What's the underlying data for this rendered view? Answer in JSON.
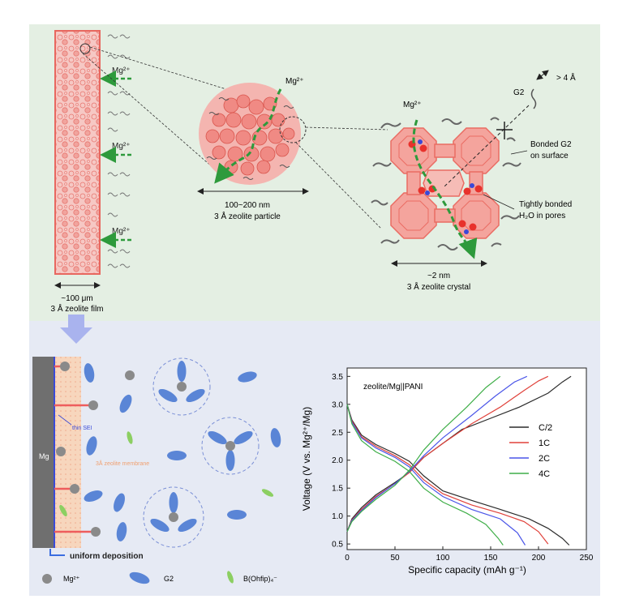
{
  "colors": {
    "zeolite_fill": "#f4b5b0",
    "zeolite_stroke": "#e8675f",
    "mg_path": "#2e9a3c",
    "g2": "#5a85d6",
    "mg_ion": "#8a8a8a",
    "anion": "#8ccf62",
    "sei": "#3a4bd8",
    "mg_metal": "#6f6f6f"
  },
  "top": {
    "film": {
      "mg_labels": [
        "Mg²⁺",
        "Mg²⁺",
        "Mg²⁺"
      ],
      "scale_label": "~100 μm",
      "caption": "3 Å zeolite film"
    },
    "particle": {
      "mg_label": "Mg²⁺",
      "scale_label": "100~200 nm",
      "caption": "3 Å zeolite particle"
    },
    "crystal": {
      "mg_label": "Mg²⁺",
      "g2_label": "G2",
      "size_label": "> 4 Å",
      "bonded_g2": [
        "Bonded G2",
        "on surface"
      ],
      "water": [
        "Tightly bonded",
        "H₂O in pores"
      ],
      "scale_label": "~2 nm",
      "caption": "3 Å zeolite crystal"
    }
  },
  "bottom": {
    "mg_label": "Mg",
    "sei_label": "thin SEI",
    "membrane_label": "3Å zeolite membrane",
    "deposition_label": "uniform deposition",
    "legend": [
      {
        "symbol": "mg-ion",
        "label": "Mg²⁺"
      },
      {
        "symbol": "g2",
        "label": "G2"
      },
      {
        "symbol": "anion",
        "label": "B(Ohfip)₄⁻"
      }
    ]
  },
  "chart_data": {
    "type": "line",
    "annotation": "zeolite/Mg||PANI",
    "xlabel": "Specific capacity (mAh g⁻¹)",
    "ylabel": "Voltage (V vs. Mg²⁺/Mg)",
    "xlim": [
      0,
      250
    ],
    "ylim": [
      0.4,
      3.65
    ],
    "xticks": [
      "0",
      "50",
      "100",
      "150",
      "200",
      "250"
    ],
    "yticks": [
      "0.5",
      "1.0",
      "1.5",
      "2.0",
      "2.5",
      "3.0",
      "3.5"
    ],
    "legend_position": "right",
    "series": [
      {
        "name": "C/2",
        "color": "#2b2b2b",
        "discharge": [
          [
            0,
            3.0
          ],
          [
            5,
            2.72
          ],
          [
            15,
            2.45
          ],
          [
            30,
            2.28
          ],
          [
            50,
            2.12
          ],
          [
            65,
            1.98
          ],
          [
            80,
            1.72
          ],
          [
            100,
            1.45
          ],
          [
            130,
            1.28
          ],
          [
            160,
            1.12
          ],
          [
            190,
            0.95
          ],
          [
            210,
            0.78
          ],
          [
            225,
            0.6
          ],
          [
            232,
            0.48
          ]
        ],
        "charge": [
          [
            0,
            0.72
          ],
          [
            5,
            0.95
          ],
          [
            15,
            1.15
          ],
          [
            30,
            1.38
          ],
          [
            50,
            1.6
          ],
          [
            65,
            1.78
          ],
          [
            80,
            2.05
          ],
          [
            100,
            2.3
          ],
          [
            120,
            2.55
          ],
          [
            150,
            2.75
          ],
          [
            180,
            2.95
          ],
          [
            210,
            3.2
          ],
          [
            225,
            3.4
          ],
          [
            234,
            3.5
          ]
        ]
      },
      {
        "name": "1C",
        "color": "#e0413a",
        "discharge": [
          [
            0,
            3.0
          ],
          [
            5,
            2.7
          ],
          [
            15,
            2.42
          ],
          [
            30,
            2.25
          ],
          [
            50,
            2.08
          ],
          [
            65,
            1.92
          ],
          [
            80,
            1.65
          ],
          [
            100,
            1.4
          ],
          [
            130,
            1.2
          ],
          [
            160,
            1.05
          ],
          [
            185,
            0.9
          ],
          [
            200,
            0.72
          ],
          [
            210,
            0.5
          ]
        ],
        "charge": [
          [
            0,
            0.72
          ],
          [
            5,
            0.93
          ],
          [
            15,
            1.12
          ],
          [
            30,
            1.35
          ],
          [
            50,
            1.58
          ],
          [
            65,
            1.78
          ],
          [
            80,
            2.05
          ],
          [
            100,
            2.3
          ],
          [
            130,
            2.65
          ],
          [
            160,
            2.95
          ],
          [
            185,
            3.25
          ],
          [
            200,
            3.42
          ],
          [
            210,
            3.5
          ]
        ]
      },
      {
        "name": "2C",
        "color": "#4a55e8",
        "discharge": [
          [
            0,
            3.0
          ],
          [
            5,
            2.68
          ],
          [
            15,
            2.4
          ],
          [
            30,
            2.22
          ],
          [
            50,
            2.05
          ],
          [
            65,
            1.88
          ],
          [
            80,
            1.6
          ],
          [
            100,
            1.35
          ],
          [
            130,
            1.12
          ],
          [
            160,
            0.95
          ],
          [
            178,
            0.7
          ],
          [
            186,
            0.48
          ]
        ],
        "charge": [
          [
            0,
            0.72
          ],
          [
            5,
            0.92
          ],
          [
            15,
            1.1
          ],
          [
            30,
            1.33
          ],
          [
            50,
            1.58
          ],
          [
            65,
            1.8
          ],
          [
            80,
            2.08
          ],
          [
            100,
            2.4
          ],
          [
            130,
            2.8
          ],
          [
            155,
            3.15
          ],
          [
            175,
            3.4
          ],
          [
            188,
            3.5
          ]
        ]
      },
      {
        "name": "4C",
        "color": "#3fae48",
        "discharge": [
          [
            0,
            3.0
          ],
          [
            5,
            2.65
          ],
          [
            15,
            2.35
          ],
          [
            30,
            2.15
          ],
          [
            50,
            1.98
          ],
          [
            65,
            1.8
          ],
          [
            80,
            1.5
          ],
          [
            100,
            1.25
          ],
          [
            125,
            1.05
          ],
          [
            145,
            0.85
          ],
          [
            158,
            0.6
          ],
          [
            163,
            0.48
          ]
        ],
        "charge": [
          [
            0,
            0.72
          ],
          [
            5,
            0.9
          ],
          [
            15,
            1.08
          ],
          [
            30,
            1.3
          ],
          [
            50,
            1.55
          ],
          [
            65,
            1.82
          ],
          [
            80,
            2.18
          ],
          [
            100,
            2.55
          ],
          [
            125,
            2.95
          ],
          [
            145,
            3.3
          ],
          [
            160,
            3.5
          ]
        ]
      }
    ]
  }
}
